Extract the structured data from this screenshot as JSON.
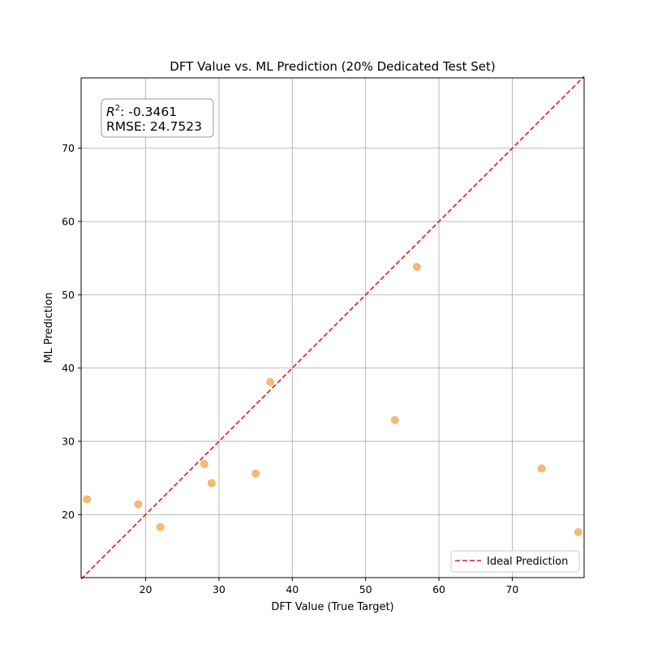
{
  "chart_data": {
    "type": "scatter",
    "title": "DFT Value vs. ML Prediction (20% Dedicated Test Set)",
    "xlabel": "DFT Value (True Target)",
    "ylabel": "ML Prediction",
    "xlim": [
      11.2,
      79.8
    ],
    "ylim": [
      11.4,
      79.6
    ],
    "xticks": [
      20,
      30,
      40,
      50,
      60,
      70
    ],
    "yticks": [
      20,
      30,
      40,
      50,
      60,
      70
    ],
    "grid": true,
    "series": [
      {
        "kind": "scatter",
        "color": "#f5a142",
        "points": [
          {
            "x": 12,
            "y": 22.1
          },
          {
            "x": 19,
            "y": 21.4
          },
          {
            "x": 22,
            "y": 18.3
          },
          {
            "x": 28,
            "y": 26.9
          },
          {
            "x": 29,
            "y": 24.3
          },
          {
            "x": 35,
            "y": 25.6
          },
          {
            "x": 37,
            "y": 38.1
          },
          {
            "x": 54,
            "y": 32.9
          },
          {
            "x": 57,
            "y": 53.8
          },
          {
            "x": 74,
            "y": 26.3
          },
          {
            "x": 79,
            "y": 17.6
          }
        ]
      },
      {
        "kind": "line",
        "name": "Ideal Prediction",
        "color": "#e31a1c",
        "style": "dashed",
        "x": [
          11.2,
          79.8
        ],
        "y": [
          11.2,
          79.8
        ]
      }
    ],
    "annotation": {
      "r2_label": "R",
      "r2_sup": "2",
      "r2_value": ": -0.3461",
      "rmse": "RMSE: 24.7523"
    },
    "legend": {
      "position": "bottom-right",
      "label": "Ideal Prediction"
    }
  }
}
